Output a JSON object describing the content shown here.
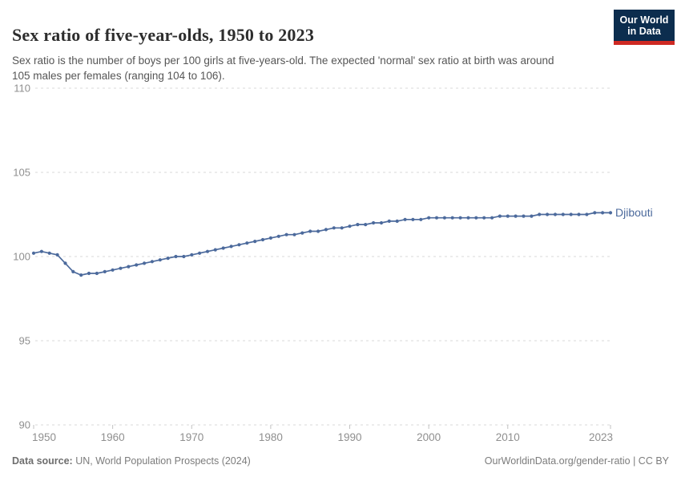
{
  "header": {
    "title": "Sex ratio of five-year-olds, 1950 to 2023",
    "subtitle": "Sex ratio is the number of boys per 100 girls at five-years-old. The expected 'normal' sex ratio at birth was around 105 males per females (ranging 104 to 106)."
  },
  "logo": {
    "line1": "Our World",
    "line2": "in Data",
    "bg_color": "#0C2D4E",
    "bar_color": "#CE2923"
  },
  "chart_data": {
    "type": "line",
    "title": "Sex ratio of five-year-olds, 1950 to 2023",
    "x": [
      1950,
      1951,
      1952,
      1953,
      1954,
      1955,
      1956,
      1957,
      1958,
      1959,
      1960,
      1961,
      1962,
      1963,
      1964,
      1965,
      1966,
      1967,
      1968,
      1969,
      1970,
      1971,
      1972,
      1973,
      1974,
      1975,
      1976,
      1977,
      1978,
      1979,
      1980,
      1981,
      1982,
      1983,
      1984,
      1985,
      1986,
      1987,
      1988,
      1989,
      1990,
      1991,
      1992,
      1993,
      1994,
      1995,
      1996,
      1997,
      1998,
      1999,
      2000,
      2001,
      2002,
      2003,
      2004,
      2005,
      2006,
      2007,
      2008,
      2009,
      2010,
      2011,
      2012,
      2013,
      2014,
      2015,
      2016,
      2017,
      2018,
      2019,
      2020,
      2021,
      2022,
      2023
    ],
    "series": [
      {
        "name": "Djibouti",
        "color": "#4C6A9C",
        "values": [
          100.2,
          100.3,
          100.2,
          100.1,
          99.6,
          99.1,
          98.9,
          99.0,
          99.0,
          99.1,
          99.2,
          99.3,
          99.4,
          99.5,
          99.6,
          99.7,
          99.8,
          99.9,
          100.0,
          100.0,
          100.1,
          100.2,
          100.3,
          100.4,
          100.5,
          100.6,
          100.7,
          100.8,
          100.9,
          101.0,
          101.1,
          101.2,
          101.3,
          101.3,
          101.4,
          101.5,
          101.5,
          101.6,
          101.7,
          101.7,
          101.8,
          101.9,
          101.9,
          102.0,
          102.0,
          102.1,
          102.1,
          102.2,
          102.2,
          102.2,
          102.3,
          102.3,
          102.3,
          102.3,
          102.3,
          102.3,
          102.3,
          102.3,
          102.3,
          102.4,
          102.4,
          102.4,
          102.4,
          102.4,
          102.5,
          102.5,
          102.5,
          102.5,
          102.5,
          102.5,
          102.5,
          102.6,
          102.6,
          102.6
        ]
      }
    ],
    "xlabel": "",
    "ylabel": "",
    "xlim": [
      1950,
      2023
    ],
    "ylim": [
      90,
      110
    ],
    "x_ticks": [
      1950,
      1960,
      1970,
      1980,
      1990,
      2000,
      2010,
      2023
    ],
    "y_ticks": [
      90,
      95,
      100,
      105,
      110
    ],
    "grid": "dashed-horizontal",
    "legend_position": "end-of-line",
    "grid_color": "#d9d9d9",
    "tick_label_color": "#8f8f8f"
  },
  "footer": {
    "datasource_label": "Data source:",
    "datasource_value": " UN, World Population Prospects (2024)",
    "link_text": "OurWorldinData.org/gender-ratio | CC BY"
  }
}
